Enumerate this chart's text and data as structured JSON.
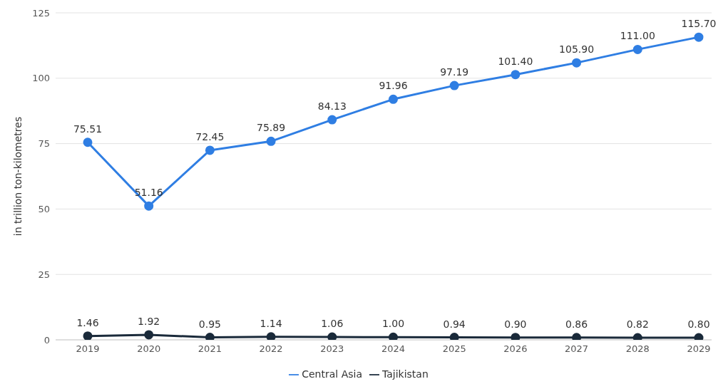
{
  "chart_data": {
    "type": "line",
    "ylabel": "in trillion ton-kilometres",
    "categories": [
      "2019",
      "2020",
      "2021",
      "2022",
      "2023",
      "2024",
      "2025",
      "2026",
      "2027",
      "2028",
      "2029"
    ],
    "series": [
      {
        "name": "Central Asia",
        "color": "#2f7ee3",
        "values": [
          75.51,
          51.16,
          72.45,
          75.89,
          84.13,
          91.96,
          97.19,
          101.4,
          105.9,
          111,
          115.7
        ],
        "value_labels": [
          "75.51",
          "51.16",
          "72.45",
          "75.89",
          "84.13",
          "91.96",
          "97.19",
          "101.40",
          "105.90",
          "111.00",
          "115.70"
        ]
      },
      {
        "name": "Tajikistan",
        "color": "#1a2a3a",
        "values": [
          1.46,
          1.92,
          0.95,
          1.14,
          1.06,
          1,
          0.94,
          0.9,
          0.86,
          0.82,
          0.8
        ],
        "value_labels": [
          "1.46",
          "1.92",
          "0.95",
          "1.14",
          "1.06",
          "1.00",
          "0.94",
          "0.90",
          "0.86",
          "0.82",
          "0.80"
        ]
      }
    ],
    "ylim": [
      0,
      125
    ],
    "yticks": [
      0,
      25,
      50,
      75,
      100,
      125
    ],
    "grid": "y",
    "legend": "bottom",
    "marker": "circle",
    "line_style": "solid"
  }
}
